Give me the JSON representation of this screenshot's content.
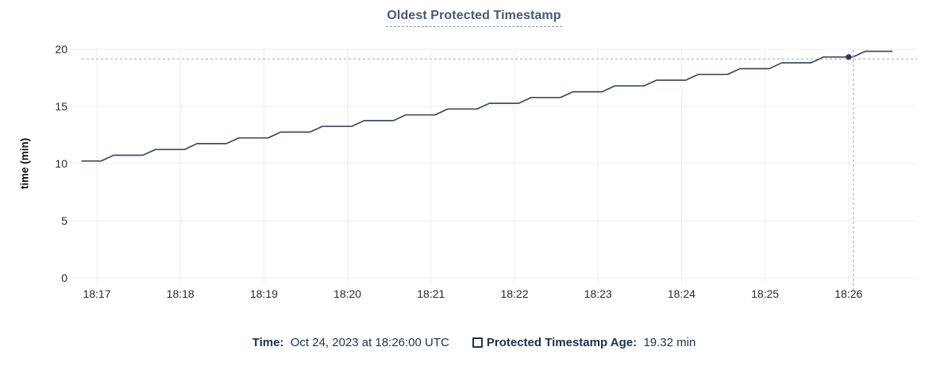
{
  "chart_data": {
    "type": "line",
    "title": "Oldest Protected Timestamp",
    "ylabel": "time (min)",
    "ylim": [
      0,
      20
    ],
    "yticks": [
      0,
      5,
      10,
      15,
      20
    ],
    "xticks": [
      "18:17",
      "18:18",
      "18:19",
      "18:20",
      "18:21",
      "18:22",
      "18:23",
      "18:24",
      "18:25",
      "18:26"
    ],
    "grid": true,
    "legend_position": "bottom",
    "x_unit": "minutes after 18:17",
    "series": [
      {
        "name": "Protected Timestamp Age",
        "points": [
          [
            -0.18,
            10.22
          ],
          [
            0.05,
            10.22
          ],
          [
            0.2,
            10.73
          ],
          [
            0.55,
            10.73
          ],
          [
            0.7,
            11.23
          ],
          [
            1.05,
            11.23
          ],
          [
            1.2,
            11.74
          ],
          [
            1.55,
            11.74
          ],
          [
            1.7,
            12.24
          ],
          [
            2.05,
            12.24
          ],
          [
            2.2,
            12.75
          ],
          [
            2.55,
            12.75
          ],
          [
            2.7,
            13.25
          ],
          [
            3.05,
            13.25
          ],
          [
            3.2,
            13.76
          ],
          [
            3.55,
            13.76
          ],
          [
            3.7,
            14.26
          ],
          [
            4.05,
            14.26
          ],
          [
            4.2,
            14.77
          ],
          [
            4.55,
            14.77
          ],
          [
            4.7,
            15.27
          ],
          [
            5.05,
            15.27
          ],
          [
            5.2,
            15.78
          ],
          [
            5.55,
            15.78
          ],
          [
            5.7,
            16.28
          ],
          [
            6.05,
            16.28
          ],
          [
            6.2,
            16.79
          ],
          [
            6.55,
            16.79
          ],
          [
            6.7,
            17.29
          ],
          [
            7.05,
            17.29
          ],
          [
            7.2,
            17.8
          ],
          [
            7.55,
            17.8
          ],
          [
            7.7,
            18.3
          ],
          [
            8.05,
            18.3
          ],
          [
            8.2,
            18.81
          ],
          [
            8.55,
            18.81
          ],
          [
            8.7,
            19.32
          ],
          [
            9.05,
            19.32
          ],
          [
            9.2,
            19.82
          ],
          [
            9.52,
            19.82
          ]
        ]
      }
    ],
    "crosshair": {
      "t": 9.0,
      "value": 19.32,
      "time_label": "18:26:00"
    }
  },
  "tooltip_bar": {
    "time_label": "Time:",
    "time_value": "Oct 24, 2023 at 18:26:00 UTC",
    "series_label": "Protected Timestamp Age:",
    "series_value": "19.32 min"
  },
  "colors": {
    "title": "#475872",
    "title_underline": "#8795ab",
    "axis_text": "#242a35",
    "grid": "#ececec",
    "line": "#3e4b64",
    "dot": "#2c3a55",
    "crosshair": "#a4b4c3",
    "legend_text": "#1d3150"
  }
}
